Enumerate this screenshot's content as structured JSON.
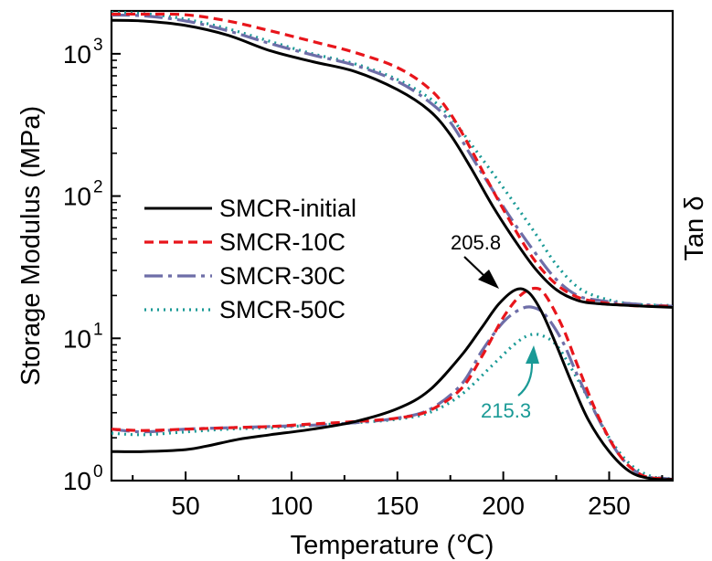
{
  "chart_data": {
    "type": "line",
    "xlabel": "Temperature (℃)",
    "ylabel": "Storage Modulus (MPa)",
    "y2label": "Tan δ",
    "xlim": [
      15,
      280
    ],
    "ylim": [
      1,
      2000
    ],
    "yscale": "log",
    "grid": false,
    "legend_placement": "center-left",
    "x_ticks": [
      "50",
      "100",
      "150",
      "200",
      "250"
    ],
    "x_tick_values": [
      50,
      100,
      150,
      200,
      250
    ],
    "y_ticks": [
      "10",
      "10",
      "10",
      "10"
    ],
    "y_tick_exponents": [
      "0",
      "1",
      "2",
      "3"
    ],
    "y_tick_values": [
      1,
      10,
      100,
      1000
    ],
    "series": [
      {
        "name": "SMCR-initial",
        "color": "#000000",
        "dash": "solid",
        "storage_modulus": {
          "x": [
            15,
            30,
            50,
            70,
            90,
            110,
            130,
            150,
            165,
            175,
            185,
            195,
            205,
            215,
            225,
            235,
            245,
            260,
            280
          ],
          "y": [
            1720,
            1700,
            1580,
            1350,
            1050,
            880,
            750,
            560,
            400,
            270,
            155,
            85,
            50,
            31,
            22,
            18.5,
            17.5,
            17,
            16.5
          ]
        },
        "tan_delta": {
          "x": [
            15,
            30,
            50,
            60,
            75,
            90,
            110,
            130,
            150,
            165,
            180,
            190,
            198,
            206,
            212,
            218,
            225,
            232,
            240,
            250,
            260,
            270,
            280
          ],
          "y": [
            1.6,
            1.6,
            1.65,
            1.75,
            1.95,
            2.1,
            2.3,
            2.6,
            3.2,
            4.3,
            7.5,
            12,
            17.5,
            22,
            21,
            15.5,
            9,
            5,
            2.7,
            1.6,
            1.15,
            1.03,
            1.02
          ]
        }
      },
      {
        "name": "SMCR-10C",
        "color": "#e8151b",
        "dash": "10,6",
        "storage_modulus": {
          "x": [
            15,
            30,
            50,
            70,
            90,
            110,
            130,
            150,
            165,
            175,
            185,
            195,
            205,
            215,
            225,
            235,
            245,
            260,
            280
          ],
          "y": [
            1900,
            1900,
            1880,
            1700,
            1450,
            1220,
            1020,
            800,
            570,
            380,
            210,
            110,
            60,
            35,
            24,
            19.5,
            18,
            17,
            16.8
          ]
        },
        "tan_delta": {
          "x": [
            15,
            30,
            50,
            70,
            90,
            110,
            130,
            150,
            165,
            180,
            190,
            200,
            208,
            215,
            220,
            228,
            235,
            245,
            255,
            265,
            275,
            280
          ],
          "y": [
            2.3,
            2.25,
            2.3,
            2.35,
            2.4,
            2.5,
            2.6,
            2.75,
            3.1,
            4.4,
            7.5,
            14,
            20,
            22.5,
            20,
            12,
            6.5,
            2.8,
            1.5,
            1.1,
            1.03,
            1.02
          ]
        }
      },
      {
        "name": "SMCR-30C",
        "color": "#6e6ea8",
        "dash": "20,6,4,6",
        "storage_modulus": {
          "x": [
            15,
            30,
            50,
            70,
            90,
            110,
            130,
            150,
            165,
            175,
            185,
            195,
            205,
            215,
            225,
            235,
            245,
            260,
            280
          ],
          "y": [
            1870,
            1850,
            1700,
            1450,
            1180,
            980,
            830,
            640,
            460,
            330,
            190,
            110,
            65,
            40,
            26,
            20,
            18.5,
            17.5,
            16.8
          ]
        },
        "tan_delta": {
          "x": [
            15,
            30,
            50,
            70,
            90,
            110,
            130,
            150,
            165,
            180,
            190,
            200,
            208,
            214,
            220,
            228,
            235,
            245,
            255,
            265,
            275,
            280
          ],
          "y": [
            2.3,
            2.2,
            2.3,
            2.35,
            2.4,
            2.45,
            2.55,
            2.75,
            3.15,
            4.7,
            8.2,
            13,
            16,
            16.5,
            14.5,
            9.5,
            5.5,
            2.7,
            1.5,
            1.1,
            1.04,
            1.02
          ]
        }
      },
      {
        "name": "SMCR-50C",
        "color": "#1a9a96",
        "dash": "2,5",
        "storage_modulus": {
          "x": [
            15,
            30,
            50,
            70,
            90,
            110,
            130,
            150,
            165,
            175,
            185,
            195,
            205,
            215,
            225,
            235,
            245,
            260,
            280
          ],
          "y": [
            1950,
            1920,
            1750,
            1500,
            1220,
            1000,
            850,
            660,
            490,
            360,
            230,
            145,
            90,
            55,
            33,
            23,
            19.5,
            17.5,
            17
          ]
        },
        "tan_delta": {
          "x": [
            15,
            30,
            50,
            70,
            90,
            110,
            130,
            150,
            165,
            180,
            195,
            205,
            212,
            218,
            225,
            232,
            240,
            250,
            260,
            270,
            280
          ],
          "y": [
            2.15,
            2.1,
            2.2,
            2.3,
            2.35,
            2.45,
            2.55,
            2.7,
            3.0,
            4.0,
            6.5,
            9,
            10.5,
            10.5,
            9,
            6.2,
            3.8,
            2.0,
            1.3,
            1.07,
            1.03
          ]
        }
      }
    ],
    "annotations": [
      {
        "text": "205.8",
        "x": 205.8,
        "y": 22,
        "color": "#000000"
      },
      {
        "text": "215.3",
        "x": 215.3,
        "y": 10.5,
        "color": "#1a9a96"
      }
    ]
  }
}
